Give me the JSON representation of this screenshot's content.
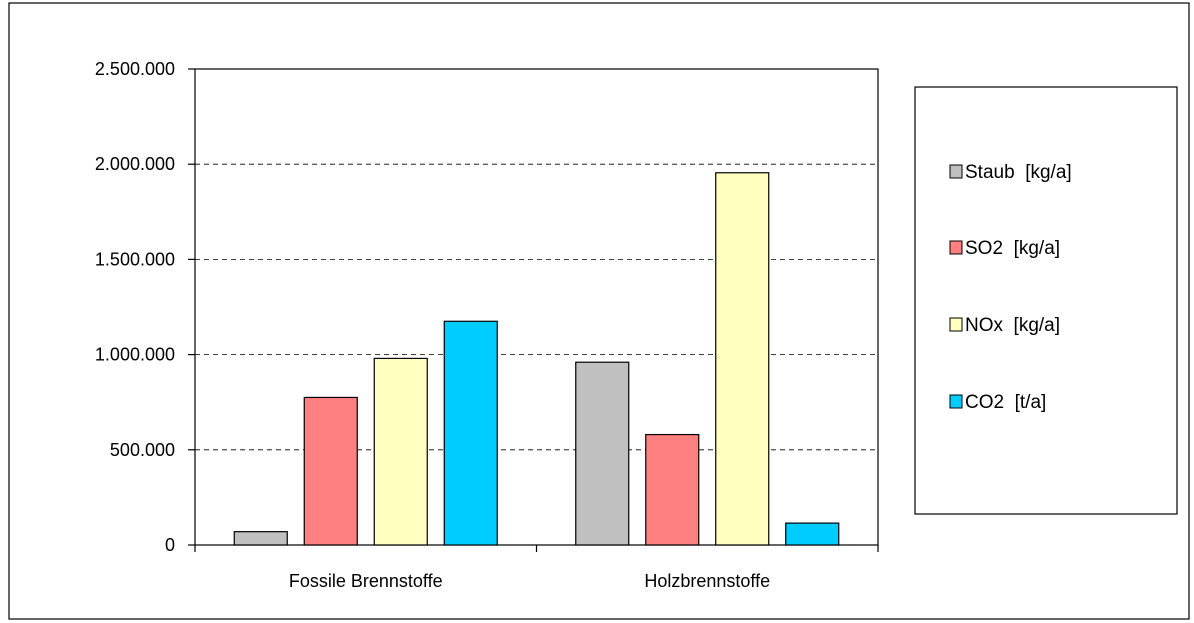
{
  "chart_data": {
    "type": "bar",
    "categories": [
      "Fossile Brennstoffe",
      "Holzbrennstoffe"
    ],
    "series": [
      {
        "name": "Staub  [kg/a]",
        "color": "#c0c0c0",
        "values": [
          70000,
          960000
        ]
      },
      {
        "name": "SO2  [kg/a]",
        "color": "#ff8080",
        "values": [
          775000,
          580000
        ]
      },
      {
        "name": "NOx  [kg/a]",
        "color": "#ffffc0",
        "values": [
          980000,
          1955000
        ]
      },
      {
        "name": "CO2  [t/a]",
        "color": "#00ccff",
        "values": [
          1175000,
          115000
        ]
      }
    ],
    "title": "",
    "xlabel": "",
    "ylabel": "",
    "ylim": [
      0,
      2500000
    ],
    "yticks": [
      {
        "value": 0,
        "label": "0"
      },
      {
        "value": 500000,
        "label": "500.000"
      },
      {
        "value": 1000000,
        "label": "1.000.000"
      },
      {
        "value": 1500000,
        "label": "1.500.000"
      },
      {
        "value": 2000000,
        "label": "2.000.000"
      },
      {
        "value": 2500000,
        "label": "2.500.000"
      }
    ],
    "grid": "horizontal-dashed",
    "legend": "right"
  }
}
